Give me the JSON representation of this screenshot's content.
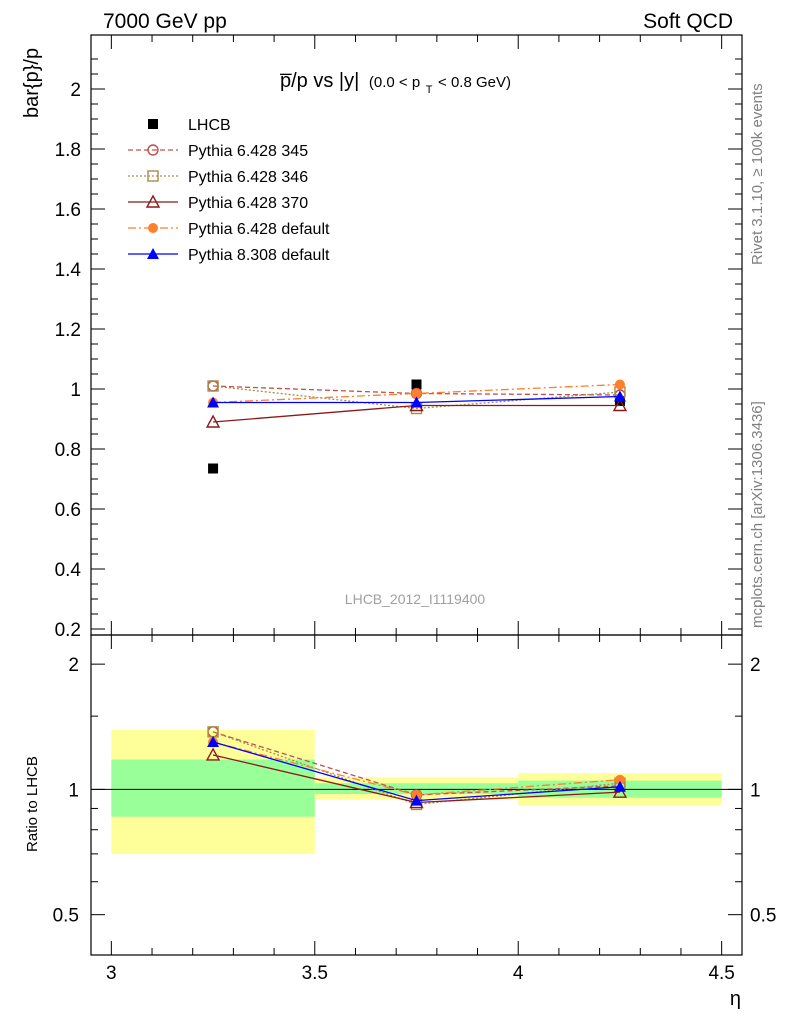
{
  "header": {
    "left": "7000 GeV pp",
    "right": "Soft QCD"
  },
  "side": {
    "rivet": "Rivet 3.1.10, ≥ 100k events",
    "mcplots": "mcplots.cern.ch [arXiv:1306.3436]"
  },
  "chart_data": [
    {
      "type": "scatter",
      "title_main": "p̅/p vs |y|",
      "title_cut": "(0.0 < p",
      "title_cut_sub": "T",
      "title_cut_end": " < 0.8 GeV)",
      "ylabel": "bar{p}/p",
      "analysis": "LHCB_2012_I1119400",
      "xlim": [
        2.95,
        4.55
      ],
      "ylim": [
        0.18,
        2.18
      ],
      "yticks": [
        0.2,
        0.4,
        0.6,
        0.8,
        1.0,
        1.2,
        1.4,
        1.6,
        1.8,
        2.0
      ],
      "ytick_labels": [
        "0.2",
        "0.4",
        "0.6",
        "0.8",
        "1",
        "1.2",
        "1.4",
        "1.6",
        "1.8",
        "2"
      ],
      "x": [
        3.25,
        3.75,
        4.25
      ],
      "series": [
        {
          "name": "LHCB",
          "color": "#000000",
          "marker": "square-filled",
          "dash": "",
          "values": [
            0.735,
            1.015,
            0.96
          ]
        },
        {
          "name": "Pythia 6.428 345",
          "color": "#c0504d",
          "marker": "circle-open",
          "dash": "5,3",
          "values": [
            1.01,
            0.985,
            0.98
          ]
        },
        {
          "name": "Pythia 6.428 346",
          "color": "#a98b4a",
          "marker": "square-open",
          "dash": "2,2",
          "values": [
            1.01,
            0.935,
            0.99
          ]
        },
        {
          "name": "Pythia 6.428 370",
          "color": "#8b1a1a",
          "marker": "triangle-open",
          "dash": "",
          "values": [
            0.89,
            0.945,
            0.945
          ]
        },
        {
          "name": "Pythia 6.428 default",
          "color": "#ff7f2a",
          "marker": "circle-filled",
          "dash": "8,3,2,3",
          "values": [
            0.955,
            0.985,
            1.015
          ]
        },
        {
          "name": "Pythia 8.308 default",
          "color": "#0000ff",
          "marker": "triangle-filled",
          "dash": "",
          "values": [
            0.955,
            0.955,
            0.975
          ]
        }
      ],
      "legend_position": "top-left"
    },
    {
      "type": "line",
      "ylabel": "Ratio to LHCB",
      "xlabel": "η",
      "ylog": true,
      "xlim": [
        2.95,
        4.55
      ],
      "ylim": [
        0.4,
        2.35
      ],
      "xticks": [
        3.0,
        3.5,
        4.0,
        4.5
      ],
      "xtick_labels": [
        "3",
        "3.5",
        "4",
        "4.5"
      ],
      "yticks": [
        0.5,
        1.0,
        2.0
      ],
      "ytick_labels": [
        "0.5",
        "1",
        "2"
      ],
      "bands": [
        {
          "x0": 3.0,
          "x1": 3.5,
          "stat": [
            0.86,
            1.18
          ],
          "total": [
            0.7,
            1.39
          ]
        },
        {
          "x0": 3.5,
          "x1": 4.0,
          "stat": [
            0.975,
            1.035
          ],
          "total": [
            0.945,
            1.07
          ]
        },
        {
          "x0": 4.0,
          "x1": 4.5,
          "stat": [
            0.955,
            1.05
          ],
          "total": [
            0.915,
            1.095
          ]
        }
      ],
      "band_colors": {
        "stat": "#99ff99",
        "total": "#ffff99"
      },
      "x": [
        3.25,
        3.75,
        4.25
      ],
      "series": [
        {
          "name": "Pythia 6.428 345",
          "color": "#c0504d",
          "marker": "circle-open",
          "dash": "5,3",
          "values": [
            1.375,
            0.97,
            1.02
          ]
        },
        {
          "name": "Pythia 6.428 346",
          "color": "#a98b4a",
          "marker": "square-open",
          "dash": "2,2",
          "values": [
            1.375,
            0.92,
            1.035
          ]
        },
        {
          "name": "Pythia 6.428 370",
          "color": "#8b1a1a",
          "marker": "triangle-open",
          "dash": "",
          "values": [
            1.21,
            0.93,
            0.985
          ]
        },
        {
          "name": "Pythia 6.428 default",
          "color": "#ff7f2a",
          "marker": "circle-filled",
          "dash": "8,3,2,3",
          "values": [
            1.3,
            0.97,
            1.055
          ]
        },
        {
          "name": "Pythia 8.308 default",
          "color": "#0000ff",
          "marker": "triangle-filled",
          "dash": "",
          "values": [
            1.3,
            0.94,
            1.015
          ]
        }
      ]
    }
  ]
}
